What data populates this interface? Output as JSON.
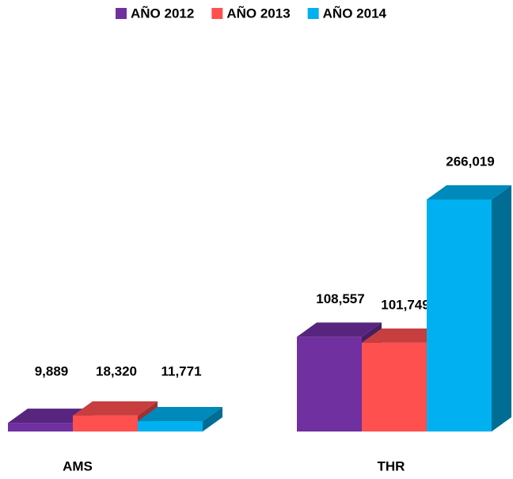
{
  "chart_data": {
    "type": "bar3d",
    "categories": [
      "AMS",
      "THR"
    ],
    "series": [
      {
        "name": "AÑO 2012",
        "color": "#7030a0",
        "values": [
          9889,
          108557
        ],
        "value_labels": [
          "9,889",
          "108,557"
        ]
      },
      {
        "name": "AÑO 2013",
        "color": "#ff5050",
        "values": [
          18320,
          101749
        ],
        "value_labels": [
          "18,320",
          "101,749"
        ]
      },
      {
        "name": "AÑO 2014",
        "color": "#00b0f0",
        "values": [
          11771,
          266019
        ],
        "value_labels": [
          "11,771",
          "266,019"
        ]
      }
    ],
    "legend": "top"
  }
}
